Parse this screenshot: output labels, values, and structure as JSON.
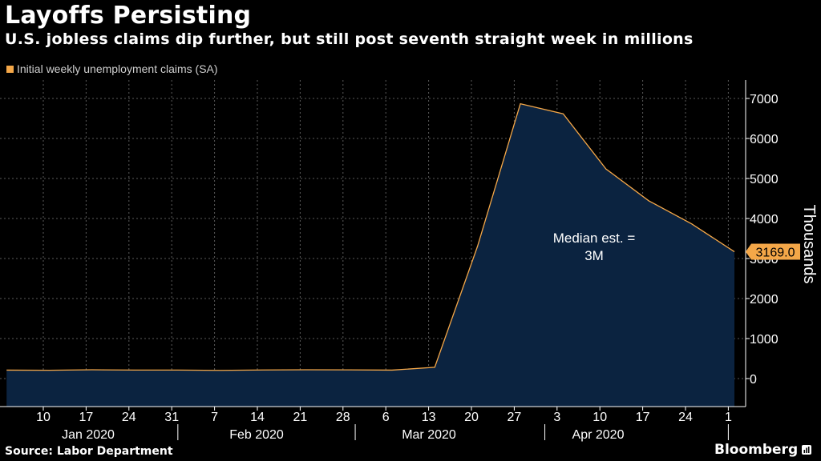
{
  "header": {
    "title": "Layoffs Persisting",
    "subtitle": "U.S. jobless claims dip further, but still post seventh straight week in millions"
  },
  "footer": {
    "source": "Source: Labor Department",
    "brand": "Bloomberg"
  },
  "colors": {
    "background": "#000000",
    "series_line": "#f4a748",
    "area_fill": "#0b2340",
    "grid": "#5a5a5a",
    "callout_bg": "#f4a748"
  },
  "chart_data": {
    "type": "area",
    "title": "Layoffs Persisting",
    "subtitle": "U.S. jobless claims dip further, but still post seventh straight week in millions",
    "ylabel": "Thousands",
    "ylim": [
      -700,
      7500
    ],
    "y_ticks": [
      0,
      1000,
      2000,
      3000,
      4000,
      5000,
      6000,
      7000
    ],
    "y_axis_position": "right",
    "grid": true,
    "legend_position": "top-left",
    "legend": [
      "Initial weekly unemployment claims (SA)"
    ],
    "x_ticks": [
      "10",
      "17",
      "24",
      "31",
      "7",
      "14",
      "21",
      "28",
      "6",
      "13",
      "20",
      "27",
      "3",
      "10",
      "17",
      "24",
      "1"
    ],
    "x_groups": [
      "Jan 2020",
      "Feb 2020",
      "Mar 2020",
      "Apr 2020"
    ],
    "series": [
      {
        "name": "Initial weekly unemployment claims (SA)",
        "x": [
          "2020-01-04",
          "2020-01-11",
          "2020-01-18",
          "2020-01-25",
          "2020-02-01",
          "2020-02-08",
          "2020-02-15",
          "2020-02-22",
          "2020-02-29",
          "2020-03-07",
          "2020-03-14",
          "2020-03-21",
          "2020-03-28",
          "2020-04-04",
          "2020-04-11",
          "2020-04-18",
          "2020-04-25",
          "2020-05-02"
        ],
        "values": [
          211,
          207,
          220,
          212,
          212,
          205,
          215,
          220,
          217,
          211,
          282,
          3307,
          6867,
          6615,
          5237,
          4442,
          3867,
          3169
        ]
      }
    ],
    "annotations": [
      {
        "text_lines": [
          "Median est. =",
          "3M"
        ]
      }
    ],
    "last_value_label": "3169.0"
  }
}
